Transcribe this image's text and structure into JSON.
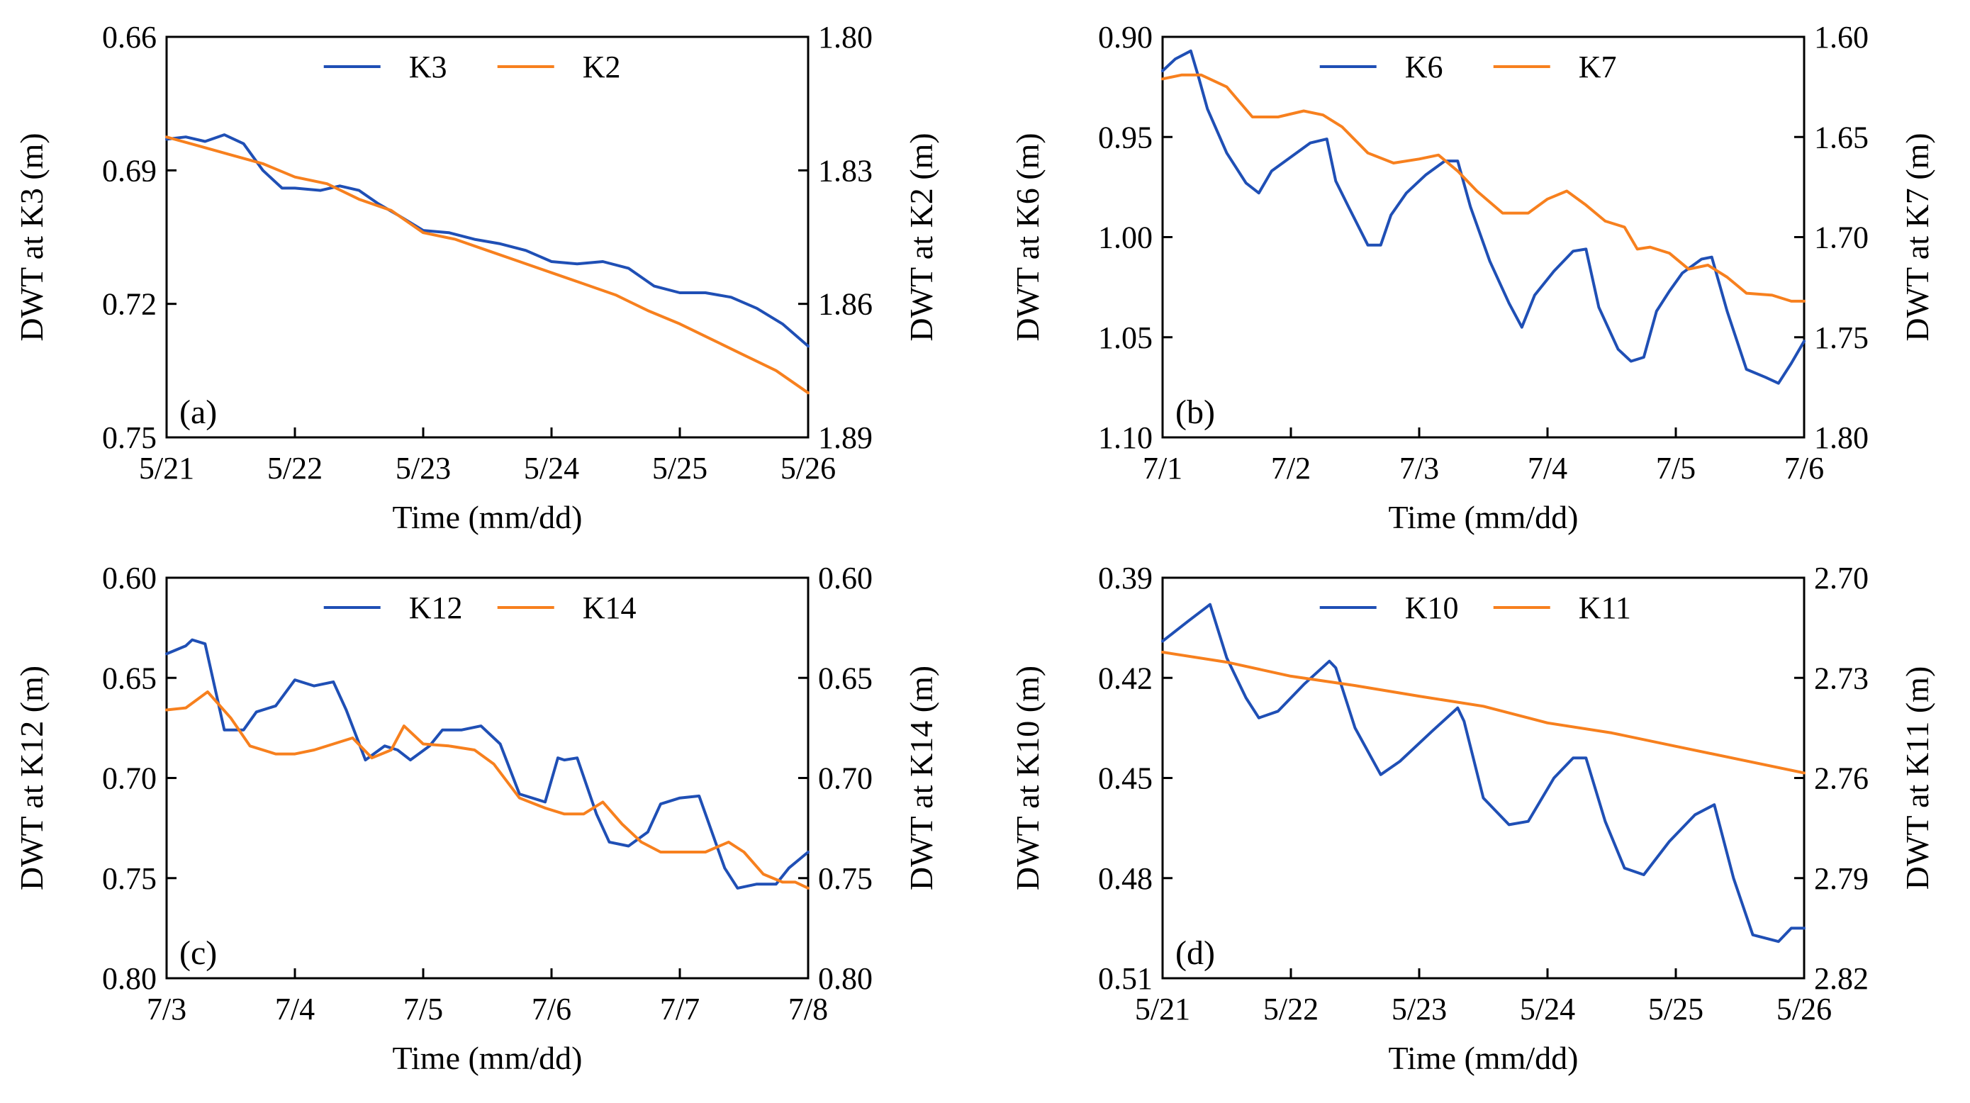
{
  "colors": {
    "series1": "#1f4fb5",
    "series2": "#f7801e",
    "axis": "#000000"
  },
  "chart_data": [
    {
      "type": "line",
      "panel_label": "(a)",
      "xlabel": "Time (mm/dd)",
      "ylabel_left": "DWT at K3 (m)",
      "ylabel_right": "DWT at K2 (m)",
      "x_ticks": [
        "5/21",
        "5/22",
        "5/23",
        "5/24",
        "5/25",
        "5/26"
      ],
      "xlim": [
        0,
        5
      ],
      "y_left": {
        "ticks": [
          "0.66",
          "0.69",
          "0.72",
          "0.75"
        ],
        "min": 0.66,
        "max": 0.75,
        "inverted": true
      },
      "y_right": {
        "ticks": [
          "1.80",
          "1.83",
          "1.86",
          "1.89"
        ],
        "min": 1.8,
        "max": 1.89,
        "inverted": true
      },
      "legend": [
        "K3",
        "K2"
      ],
      "legend_position": "top-center",
      "series": [
        {
          "name": "K3",
          "axis": "left",
          "color": "#1f4fb5",
          "x": [
            0,
            0.15,
            0.3,
            0.45,
            0.6,
            0.75,
            0.9,
            1.0,
            1.2,
            1.35,
            1.5,
            1.65,
            1.8,
            2.0,
            2.2,
            2.4,
            2.6,
            2.8,
            3.0,
            3.2,
            3.4,
            3.6,
            3.8,
            4.0,
            4.2,
            4.4,
            4.6,
            4.8,
            5.0
          ],
          "y": [
            0.683,
            0.6825,
            0.6835,
            0.682,
            0.684,
            0.69,
            0.694,
            0.694,
            0.6945,
            0.6935,
            0.6945,
            0.6975,
            0.7,
            0.7035,
            0.704,
            0.7055,
            0.7065,
            0.708,
            0.7105,
            0.711,
            0.7105,
            0.712,
            0.716,
            0.7175,
            0.7175,
            0.7185,
            0.721,
            0.7245,
            0.7295
          ]
        },
        {
          "name": "K2",
          "axis": "right",
          "color": "#f7801e",
          "x": [
            0,
            0.25,
            0.5,
            0.75,
            1.0,
            1.25,
            1.5,
            1.75,
            2.0,
            2.25,
            2.5,
            2.75,
            3.0,
            3.25,
            3.5,
            3.75,
            4.0,
            4.25,
            4.5,
            4.75,
            5.0
          ],
          "y": [
            1.8225,
            1.8245,
            1.8265,
            1.8285,
            1.8315,
            1.833,
            1.8365,
            1.839,
            1.844,
            1.8455,
            1.848,
            1.8505,
            1.853,
            1.8555,
            1.858,
            1.8615,
            1.8645,
            1.868,
            1.8715,
            1.875,
            1.88
          ]
        }
      ]
    },
    {
      "type": "line",
      "panel_label": "(b)",
      "xlabel": "Time (mm/dd)",
      "ylabel_left": "DWT at K6 (m)",
      "ylabel_right": "DWT at K7 (m)",
      "x_ticks": [
        "7/1",
        "7/2",
        "7/3",
        "7/4",
        "7/5",
        "7/6"
      ],
      "xlim": [
        0,
        5
      ],
      "y_left": {
        "ticks": [
          "0.90",
          "0.95",
          "1.00",
          "1.05",
          "1.10"
        ],
        "min": 0.9,
        "max": 1.1,
        "inverted": true
      },
      "y_right": {
        "ticks": [
          "1.60",
          "1.65",
          "1.70",
          "1.75",
          "1.80"
        ],
        "min": 1.6,
        "max": 1.8,
        "inverted": true
      },
      "legend": [
        "K6",
        "K7"
      ],
      "legend_position": "top-center",
      "series": [
        {
          "name": "K6",
          "axis": "left",
          "color": "#1f4fb5",
          "x": [
            0,
            0.1,
            0.22,
            0.28,
            0.35,
            0.5,
            0.65,
            0.75,
            0.85,
            1.0,
            1.15,
            1.28,
            1.35,
            1.45,
            1.6,
            1.7,
            1.78,
            1.9,
            2.05,
            2.2,
            2.3,
            2.4,
            2.55,
            2.7,
            2.8,
            2.9,
            3.05,
            3.2,
            3.3,
            3.4,
            3.55,
            3.65,
            3.75,
            3.85,
            3.95,
            4.05,
            4.2,
            4.28,
            4.4,
            4.55,
            4.7,
            4.8,
            4.9,
            5.0
          ],
          "y": [
            0.917,
            0.911,
            0.907,
            0.92,
            0.936,
            0.958,
            0.973,
            0.978,
            0.967,
            0.96,
            0.953,
            0.951,
            0.972,
            0.985,
            1.004,
            1.004,
            0.989,
            0.978,
            0.969,
            0.962,
            0.962,
            0.985,
            1.012,
            1.033,
            1.045,
            1.029,
            1.017,
            1.007,
            1.006,
            1.035,
            1.056,
            1.062,
            1.06,
            1.037,
            1.027,
            1.018,
            1.011,
            1.01,
            1.037,
            1.066,
            1.07,
            1.073,
            1.063,
            1.052
          ]
        },
        {
          "name": "K7",
          "axis": "right",
          "color": "#f7801e",
          "x": [
            0,
            0.15,
            0.3,
            0.5,
            0.7,
            0.9,
            1.1,
            1.25,
            1.4,
            1.6,
            1.8,
            2.0,
            2.15,
            2.3,
            2.45,
            2.65,
            2.85,
            3.0,
            3.15,
            3.3,
            3.45,
            3.6,
            3.7,
            3.8,
            3.95,
            4.1,
            4.25,
            4.4,
            4.55,
            4.75,
            4.9,
            5.0
          ],
          "y": [
            1.621,
            1.619,
            1.619,
            1.625,
            1.64,
            1.64,
            1.637,
            1.639,
            1.645,
            1.658,
            1.663,
            1.661,
            1.659,
            1.667,
            1.677,
            1.688,
            1.688,
            1.681,
            1.677,
            1.684,
            1.692,
            1.695,
            1.706,
            1.705,
            1.708,
            1.716,
            1.714,
            1.72,
            1.728,
            1.729,
            1.732,
            1.732
          ]
        }
      ]
    },
    {
      "type": "line",
      "panel_label": "(c)",
      "xlabel": "Time (mm/dd)",
      "ylabel_left": "DWT at K12 (m)",
      "ylabel_right": "DWT at K14 (m)",
      "x_ticks": [
        "7/3",
        "7/4",
        "7/5",
        "7/6",
        "7/7",
        "7/8"
      ],
      "xlim": [
        0,
        5
      ],
      "y_left": {
        "ticks": [
          "0.60",
          "0.65",
          "0.70",
          "0.75",
          "0.80"
        ],
        "min": 0.6,
        "max": 0.8,
        "inverted": true
      },
      "y_right": {
        "ticks": [
          "0.60",
          "0.65",
          "0.70",
          "0.75",
          "0.80"
        ],
        "min": 0.6,
        "max": 0.8,
        "inverted": true
      },
      "legend": [
        "K12",
        "K14"
      ],
      "legend_position": "top-center",
      "series": [
        {
          "name": "K12",
          "axis": "left",
          "color": "#1f4fb5",
          "x": [
            0,
            0.15,
            0.2,
            0.3,
            0.45,
            0.6,
            0.7,
            0.85,
            1.0,
            1.15,
            1.3,
            1.4,
            1.55,
            1.7,
            1.8,
            1.9,
            2.05,
            2.15,
            2.3,
            2.45,
            2.6,
            2.75,
            2.95,
            3.05,
            3.1,
            3.2,
            3.35,
            3.45,
            3.6,
            3.75,
            3.85,
            4.0,
            4.15,
            4.35,
            4.45,
            4.6,
            4.75,
            4.85,
            5.0
          ],
          "y": [
            0.638,
            0.634,
            0.631,
            0.633,
            0.676,
            0.676,
            0.667,
            0.664,
            0.651,
            0.654,
            0.652,
            0.666,
            0.691,
            0.684,
            0.686,
            0.691,
            0.684,
            0.676,
            0.676,
            0.674,
            0.683,
            0.708,
            0.712,
            0.69,
            0.691,
            0.69,
            0.718,
            0.732,
            0.734,
            0.727,
            0.713,
            0.71,
            0.709,
            0.745,
            0.755,
            0.753,
            0.753,
            0.745,
            0.737
          ]
        },
        {
          "name": "K14",
          "axis": "right",
          "color": "#f7801e",
          "x": [
            0,
            0.15,
            0.32,
            0.5,
            0.65,
            0.85,
            1.0,
            1.15,
            1.3,
            1.45,
            1.6,
            1.75,
            1.85,
            2.0,
            2.2,
            2.4,
            2.55,
            2.75,
            2.95,
            3.1,
            3.25,
            3.4,
            3.55,
            3.7,
            3.85,
            4.05,
            4.2,
            4.38,
            4.5,
            4.65,
            4.8,
            4.9,
            5.0
          ],
          "y": [
            0.666,
            0.665,
            0.657,
            0.67,
            0.684,
            0.688,
            0.688,
            0.686,
            0.683,
            0.68,
            0.69,
            0.686,
            0.674,
            0.683,
            0.684,
            0.686,
            0.693,
            0.71,
            0.715,
            0.718,
            0.718,
            0.712,
            0.723,
            0.732,
            0.737,
            0.737,
            0.737,
            0.732,
            0.737,
            0.748,
            0.752,
            0.752,
            0.755
          ]
        }
      ]
    },
    {
      "type": "line",
      "panel_label": "(d)",
      "xlabel": "Time (mm/dd)",
      "ylabel_left": "DWT at K10 (m)",
      "ylabel_right": "DWT at K11 (m)",
      "x_ticks": [
        "5/21",
        "5/22",
        "5/23",
        "5/24",
        "5/25",
        "5/26"
      ],
      "xlim": [
        0,
        5
      ],
      "y_left": {
        "ticks": [
          "0.39",
          "0.42",
          "0.45",
          "0.48",
          "0.51"
        ],
        "min": 0.39,
        "max": 0.51,
        "inverted": true
      },
      "y_right": {
        "ticks": [
          "2.70",
          "2.73",
          "2.76",
          "2.79",
          "2.82"
        ],
        "min": 2.7,
        "max": 2.82,
        "inverted": true
      },
      "legend": [
        "K10",
        "K11"
      ],
      "legend_position": "top-center",
      "series": [
        {
          "name": "K10",
          "axis": "left",
          "color": "#1f4fb5",
          "x": [
            0,
            0.2,
            0.37,
            0.5,
            0.65,
            0.75,
            0.9,
            1.1,
            1.3,
            1.35,
            1.5,
            1.7,
            1.85,
            2.1,
            2.3,
            2.35,
            2.5,
            2.7,
            2.85,
            3.05,
            3.2,
            3.3,
            3.45,
            3.6,
            3.75,
            3.95,
            4.15,
            4.3,
            4.45,
            4.6,
            4.8,
            4.9,
            5.0
          ],
          "y": [
            0.409,
            0.403,
            0.398,
            0.414,
            0.426,
            0.432,
            0.43,
            0.422,
            0.415,
            0.417,
            0.435,
            0.449,
            0.445,
            0.436,
            0.429,
            0.433,
            0.456,
            0.464,
            0.463,
            0.45,
            0.444,
            0.444,
            0.463,
            0.477,
            0.479,
            0.469,
            0.461,
            0.458,
            0.48,
            0.497,
            0.499,
            0.495,
            0.495
          ]
        },
        {
          "name": "K11",
          "axis": "right",
          "color": "#f7801e",
          "x": [
            0,
            0.5,
            1.0,
            1.5,
            2.0,
            2.5,
            3.0,
            3.5,
            4.0,
            4.5,
            5.0
          ],
          "y": [
            2.7223,
            2.7253,
            2.7295,
            2.7323,
            2.7355,
            2.7385,
            2.7435,
            2.7465,
            2.7505,
            2.7545,
            2.7585
          ]
        }
      ]
    }
  ]
}
